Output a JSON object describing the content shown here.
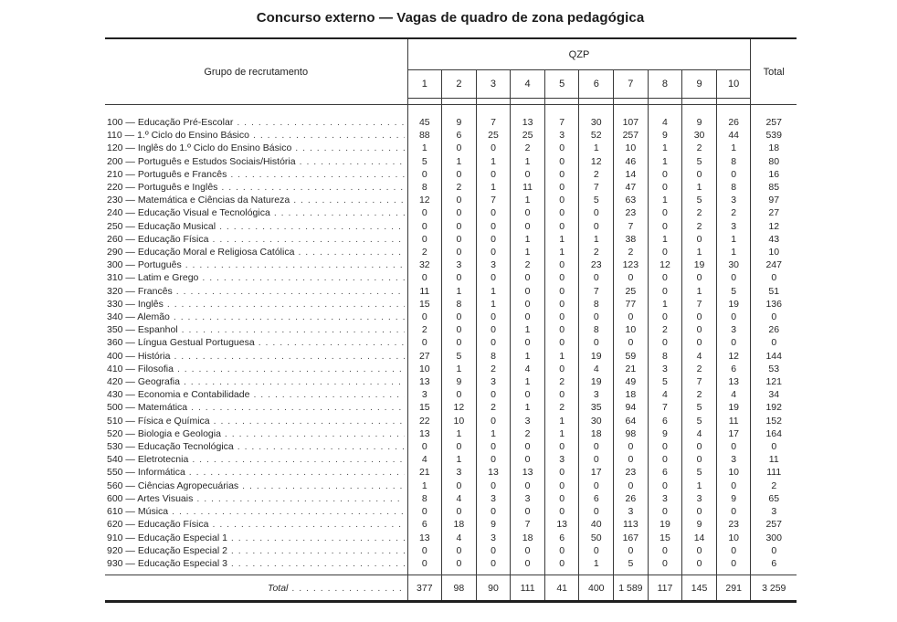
{
  "title": "Concurso externo — Vagas de quadro de zona pedagógica",
  "colors": {
    "text": "#262626",
    "rule_thin": "#3a3a3a",
    "rule_thick": "#1f1f1f",
    "background": "#ffffff"
  },
  "table": {
    "group_header": "Grupo de recrutamento",
    "qzp_header": "QZP",
    "total_header": "Total",
    "qzp_columns": [
      "1",
      "2",
      "3",
      "4",
      "5",
      "6",
      "7",
      "8",
      "9",
      "10"
    ],
    "rows": [
      {
        "label": "100 — Educação Pré-Escolar",
        "values": [
          "45",
          "9",
          "7",
          "13",
          "7",
          "30",
          "107",
          "4",
          "9",
          "26"
        ],
        "total": "257"
      },
      {
        "label": "110 — 1.º Ciclo do Ensino Básico",
        "values": [
          "88",
          "6",
          "25",
          "25",
          "3",
          "52",
          "257",
          "9",
          "30",
          "44"
        ],
        "total": "539"
      },
      {
        "label": "120 — Inglês do 1.º Ciclo do Ensino Básico",
        "values": [
          "1",
          "0",
          "0",
          "2",
          "0",
          "1",
          "10",
          "1",
          "2",
          "1"
        ],
        "total": "18"
      },
      {
        "label": "200 — Português e Estudos Sociais/História",
        "values": [
          "5",
          "1",
          "1",
          "1",
          "0",
          "12",
          "46",
          "1",
          "5",
          "8"
        ],
        "total": "80"
      },
      {
        "label": "210 — Português e Francês",
        "values": [
          "0",
          "0",
          "0",
          "0",
          "0",
          "2",
          "14",
          "0",
          "0",
          "0"
        ],
        "total": "16"
      },
      {
        "label": "220 — Português e Inglês",
        "values": [
          "8",
          "2",
          "1",
          "11",
          "0",
          "7",
          "47",
          "0",
          "1",
          "8"
        ],
        "total": "85"
      },
      {
        "label": "230 — Matemática e Ciências da Natureza",
        "values": [
          "12",
          "0",
          "7",
          "1",
          "0",
          "5",
          "63",
          "1",
          "5",
          "3"
        ],
        "total": "97"
      },
      {
        "label": "240 — Educação Visual e Tecnológica",
        "values": [
          "0",
          "0",
          "0",
          "0",
          "0",
          "0",
          "23",
          "0",
          "2",
          "2"
        ],
        "total": "27"
      },
      {
        "label": "250 — Educação Musical",
        "values": [
          "0",
          "0",
          "0",
          "0",
          "0",
          "0",
          "7",
          "0",
          "2",
          "3"
        ],
        "total": "12"
      },
      {
        "label": "260 — Educação Física",
        "values": [
          "0",
          "0",
          "0",
          "1",
          "1",
          "1",
          "38",
          "1",
          "0",
          "1"
        ],
        "total": "43"
      },
      {
        "label": "290 — Educação Moral e Religiosa Católica",
        "values": [
          "2",
          "0",
          "0",
          "1",
          "1",
          "2",
          "2",
          "0",
          "1",
          "1"
        ],
        "total": "10"
      },
      {
        "label": "300 — Português",
        "values": [
          "32",
          "3",
          "3",
          "2",
          "0",
          "23",
          "123",
          "12",
          "19",
          "30"
        ],
        "total": "247"
      },
      {
        "label": "310 — Latim e Grego",
        "values": [
          "0",
          "0",
          "0",
          "0",
          "0",
          "0",
          "0",
          "0",
          "0",
          "0"
        ],
        "total": "0"
      },
      {
        "label": "320 — Francês",
        "values": [
          "11",
          "1",
          "1",
          "0",
          "0",
          "7",
          "25",
          "0",
          "1",
          "5"
        ],
        "total": "51"
      },
      {
        "label": "330 — Inglês",
        "values": [
          "15",
          "8",
          "1",
          "0",
          "0",
          "8",
          "77",
          "1",
          "7",
          "19"
        ],
        "total": "136"
      },
      {
        "label": "340 — Alemão",
        "values": [
          "0",
          "0",
          "0",
          "0",
          "0",
          "0",
          "0",
          "0",
          "0",
          "0"
        ],
        "total": "0"
      },
      {
        "label": "350 — Espanhol",
        "values": [
          "2",
          "0",
          "0",
          "1",
          "0",
          "8",
          "10",
          "2",
          "0",
          "3"
        ],
        "total": "26"
      },
      {
        "label": "360 — Língua Gestual Portuguesa",
        "values": [
          "0",
          "0",
          "0",
          "0",
          "0",
          "0",
          "0",
          "0",
          "0",
          "0"
        ],
        "total": "0"
      },
      {
        "label": "400 — História",
        "values": [
          "27",
          "5",
          "8",
          "1",
          "1",
          "19",
          "59",
          "8",
          "4",
          "12"
        ],
        "total": "144"
      },
      {
        "label": "410 — Filosofia",
        "values": [
          "10",
          "1",
          "2",
          "4",
          "0",
          "4",
          "21",
          "3",
          "2",
          "6"
        ],
        "total": "53"
      },
      {
        "label": "420 — Geografia",
        "values": [
          "13",
          "9",
          "3",
          "1",
          "2",
          "19",
          "49",
          "5",
          "7",
          "13"
        ],
        "total": "121"
      },
      {
        "label": "430 — Economia e Contabilidade",
        "values": [
          "3",
          "0",
          "0",
          "0",
          "0",
          "3",
          "18",
          "4",
          "2",
          "4"
        ],
        "total": "34"
      },
      {
        "label": "500 — Matemática",
        "values": [
          "15",
          "12",
          "2",
          "1",
          "2",
          "35",
          "94",
          "7",
          "5",
          "19"
        ],
        "total": "192"
      },
      {
        "label": "510 — Física e Química",
        "values": [
          "22",
          "10",
          "0",
          "3",
          "1",
          "30",
          "64",
          "6",
          "5",
          "11"
        ],
        "total": "152"
      },
      {
        "label": "520 — Biologia e Geologia",
        "values": [
          "13",
          "1",
          "1",
          "2",
          "1",
          "18",
          "98",
          "9",
          "4",
          "17"
        ],
        "total": "164"
      },
      {
        "label": "530 — Educação Tecnológica",
        "values": [
          "0",
          "0",
          "0",
          "0",
          "0",
          "0",
          "0",
          "0",
          "0",
          "0"
        ],
        "total": "0"
      },
      {
        "label": "540 — Eletrotecnia",
        "values": [
          "4",
          "1",
          "0",
          "0",
          "3",
          "0",
          "0",
          "0",
          "0",
          "3"
        ],
        "total": "11"
      },
      {
        "label": "550 — Informática",
        "values": [
          "21",
          "3",
          "13",
          "13",
          "0",
          "17",
          "23",
          "6",
          "5",
          "10"
        ],
        "total": "111"
      },
      {
        "label": "560 — Ciências Agropecuárias",
        "values": [
          "1",
          "0",
          "0",
          "0",
          "0",
          "0",
          "0",
          "0",
          "1",
          "0"
        ],
        "total": "2"
      },
      {
        "label": "600 — Artes Visuais",
        "values": [
          "8",
          "4",
          "3",
          "3",
          "0",
          "6",
          "26",
          "3",
          "3",
          "9"
        ],
        "total": "65"
      },
      {
        "label": "610 — Música",
        "values": [
          "0",
          "0",
          "0",
          "0",
          "0",
          "0",
          "3",
          "0",
          "0",
          "0"
        ],
        "total": "3"
      },
      {
        "label": "620 — Educação Física",
        "values": [
          "6",
          "18",
          "9",
          "7",
          "13",
          "40",
          "113",
          "19",
          "9",
          "23"
        ],
        "total": "257"
      },
      {
        "label": "910 — Educação Especial 1",
        "values": [
          "13",
          "4",
          "3",
          "18",
          "6",
          "50",
          "167",
          "15",
          "14",
          "10"
        ],
        "total": "300"
      },
      {
        "label": "920 — Educação Especial 2",
        "values": [
          "0",
          "0",
          "0",
          "0",
          "0",
          "0",
          "0",
          "0",
          "0",
          "0"
        ],
        "total": "0"
      },
      {
        "label": "930 — Educação Especial 3",
        "values": [
          "0",
          "0",
          "0",
          "0",
          "0",
          "1",
          "5",
          "0",
          "0",
          "0"
        ],
        "total": "6"
      }
    ],
    "total_row": {
      "label": "Total",
      "values": [
        "377",
        "98",
        "90",
        "111",
        "41",
        "400",
        "1 589",
        "117",
        "145",
        "291"
      ],
      "total": "3 259"
    }
  }
}
